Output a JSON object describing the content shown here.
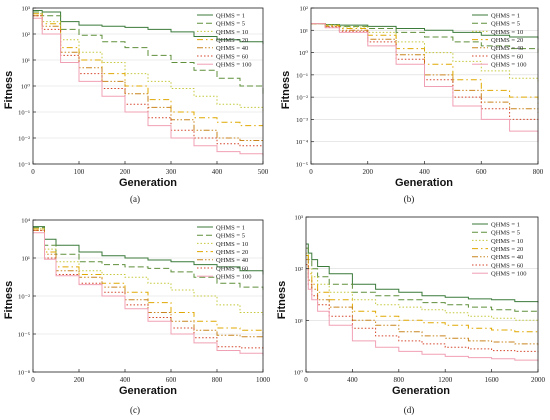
{
  "legend_labels": [
    "QHMS = 1",
    "QHMS = 5",
    "QHMS = 10",
    "QHMS = 20",
    "QHMS = 40",
    "QHMS = 60",
    "QHMS = 100"
  ],
  "series_styles": [
    {
      "color": "#3a7a3a",
      "dash": ""
    },
    {
      "color": "#5f8f3a",
      "dash": "6,3"
    },
    {
      "color": "#c4c83a",
      "dash": "1.5,2"
    },
    {
      "color": "#e0a800",
      "dash": "6,3,1.5,3"
    },
    {
      "color": "#c9851f",
      "dash": "6,2,1.5,2,1.5,2"
    },
    {
      "color": "#d4452a",
      "dash": "1.5,2"
    },
    {
      "color": "#f0a0b4",
      "dash": ""
    }
  ],
  "chart_data": [
    {
      "panel_label": "(a)",
      "type": "line",
      "xlabel": "Generation",
      "ylabel": "Fitness",
      "xlim": [
        0,
        500
      ],
      "ylog": true,
      "ylim_exp": [
        -3,
        3
      ],
      "xticks": [
        "0",
        "100",
        "200",
        "300",
        "400",
        "500"
      ],
      "yticks": [
        "10⁻³",
        "10⁻²",
        "10⁻¹",
        "10⁰",
        "10¹",
        "10²",
        "10³"
      ],
      "series": [
        {
          "name": "QHMS = 1",
          "x": [
            0,
            20,
            60,
            100,
            150,
            200,
            250,
            300,
            350,
            400,
            450,
            500
          ],
          "y": [
            800,
            700,
            300,
            220,
            200,
            180,
            150,
            120,
            80,
            60,
            50,
            40
          ]
        },
        {
          "name": "QHMS = 5",
          "x": [
            0,
            20,
            60,
            100,
            150,
            200,
            250,
            300,
            350,
            400,
            450,
            500
          ],
          "y": [
            700,
            500,
            150,
            90,
            50,
            30,
            15,
            8,
            4,
            2,
            1,
            0.5
          ]
        },
        {
          "name": "QHMS = 10",
          "x": [
            0,
            20,
            60,
            100,
            150,
            200,
            250,
            300,
            350,
            400,
            450,
            500
          ],
          "y": [
            600,
            300,
            60,
            20,
            8,
            3,
            1.5,
            0.8,
            0.4,
            0.2,
            0.15,
            0.1
          ]
        },
        {
          "name": "QHMS = 20",
          "x": [
            0,
            20,
            60,
            100,
            150,
            200,
            250,
            300,
            350,
            400,
            450,
            500
          ],
          "y": [
            600,
            250,
            30,
            10,
            3,
            1,
            0.3,
            0.1,
            0.06,
            0.04,
            0.03,
            0.03
          ]
        },
        {
          "name": "QHMS = 40",
          "x": [
            0,
            20,
            60,
            100,
            150,
            200,
            250,
            300,
            350,
            400,
            450,
            500
          ],
          "y": [
            500,
            200,
            20,
            5,
            1.5,
            0.5,
            0.15,
            0.05,
            0.02,
            0.01,
            0.008,
            0.007
          ]
        },
        {
          "name": "QHMS = 60",
          "x": [
            0,
            20,
            60,
            100,
            150,
            200,
            250,
            300,
            350,
            400,
            450,
            500
          ],
          "y": [
            500,
            150,
            15,
            3,
            0.8,
            0.2,
            0.06,
            0.02,
            0.01,
            0.006,
            0.005,
            0.005
          ]
        },
        {
          "name": "QHMS = 100",
          "x": [
            0,
            20,
            60,
            100,
            150,
            200,
            250,
            300,
            350,
            400,
            450,
            500
          ],
          "y": [
            400,
            100,
            8,
            1.5,
            0.4,
            0.1,
            0.03,
            0.01,
            0.005,
            0.003,
            0.0025,
            0.002
          ]
        }
      ]
    },
    {
      "panel_label": "(b)",
      "type": "line",
      "xlabel": "Generation",
      "ylabel": "Fitness",
      "xlim": [
        0,
        800
      ],
      "ylog": true,
      "ylim_exp": [
        -5,
        2
      ],
      "xticks": [
        "0",
        "200",
        "400",
        "600",
        "800"
      ],
      "yticks": [
        "10⁻⁵",
        "10⁻⁴",
        "10⁻³",
        "10⁻²",
        "10⁻¹",
        "10⁰",
        "10¹",
        "10²"
      ],
      "series": [
        {
          "name": "QHMS = 1",
          "x": [
            0,
            50,
            100,
            200,
            300,
            400,
            500,
            600,
            700,
            800
          ],
          "y": [
            20,
            18,
            17,
            15,
            12,
            10,
            8,
            6,
            5,
            4
          ]
        },
        {
          "name": "QHMS = 5",
          "x": [
            0,
            50,
            100,
            200,
            300,
            400,
            500,
            600,
            700,
            800
          ],
          "y": [
            20,
            18,
            15,
            12,
            8,
            5,
            3,
            2,
            1.5,
            1
          ]
        },
        {
          "name": "QHMS = 10",
          "x": [
            0,
            50,
            100,
            200,
            300,
            400,
            500,
            600,
            700,
            800
          ],
          "y": [
            20,
            17,
            14,
            8,
            3,
            1,
            0.4,
            0.15,
            0.07,
            0.05
          ]
        },
        {
          "name": "QHMS = 20",
          "x": [
            0,
            50,
            100,
            200,
            300,
            400,
            500,
            600,
            700,
            800
          ],
          "y": [
            20,
            16,
            12,
            6,
            1.5,
            0.3,
            0.06,
            0.02,
            0.01,
            0.005
          ]
        },
        {
          "name": "QHMS = 40",
          "x": [
            0,
            50,
            100,
            200,
            300,
            400,
            500,
            600,
            700,
            800
          ],
          "y": [
            20,
            15,
            10,
            4,
            0.8,
            0.1,
            0.02,
            0.006,
            0.003,
            0.002
          ]
        },
        {
          "name": "QHMS = 60",
          "x": [
            0,
            50,
            100,
            200,
            300,
            400,
            500,
            600,
            700,
            800
          ],
          "y": [
            20,
            14,
            9,
            3,
            0.5,
            0.06,
            0.01,
            0.003,
            0.001,
            0.0008
          ]
        },
        {
          "name": "QHMS = 100",
          "x": [
            0,
            50,
            100,
            200,
            300,
            400,
            500,
            600,
            700,
            800
          ],
          "y": [
            20,
            13,
            8,
            2,
            0.3,
            0.03,
            0.004,
            0.001,
            0.0003,
            0.0001
          ]
        }
      ]
    },
    {
      "panel_label": "(c)",
      "type": "line",
      "xlabel": "Generation",
      "ylabel": "Fitness",
      "xlim": [
        0,
        1000
      ],
      "ylog": true,
      "ylim_exp": [
        -8,
        4
      ],
      "xticks": [
        "0",
        "200",
        "400",
        "600",
        "800",
        "1000"
      ],
      "yticks": [
        "10⁻⁸",
        "10⁻⁵",
        "10⁻²",
        "10¹",
        "10⁴"
      ],
      "series": [
        {
          "name": "QHMS = 1",
          "x": [
            0,
            50,
            100,
            200,
            300,
            400,
            500,
            600,
            700,
            800,
            900,
            1000
          ],
          "y": [
            3000,
            300,
            100,
            30,
            15,
            10,
            7,
            5,
            3,
            2,
            1,
            0.5
          ]
        },
        {
          "name": "QHMS = 5",
          "x": [
            0,
            50,
            100,
            200,
            300,
            400,
            500,
            600,
            700,
            800,
            900,
            1000
          ],
          "y": [
            2500,
            100,
            20,
            5,
            3,
            2,
            1.5,
            0.8,
            0.3,
            0.1,
            0.05,
            0.03
          ]
        },
        {
          "name": "QHMS = 10",
          "x": [
            0,
            50,
            100,
            200,
            300,
            400,
            500,
            600,
            700,
            800,
            900,
            1000
          ],
          "y": [
            2000,
            50,
            5,
            1,
            0.5,
            0.3,
            0.1,
            0.03,
            0.01,
            0.002,
            0.0005,
            0.0002
          ]
        },
        {
          "name": "QHMS = 20",
          "x": [
            0,
            50,
            100,
            200,
            300,
            400,
            500,
            600,
            700,
            800,
            900,
            1000
          ],
          "y": [
            2000,
            30,
            2,
            0.5,
            0.1,
            0.02,
            0.003,
            0.0005,
            0.0001,
            3e-05,
            2e-05,
            1e-05
          ]
        },
        {
          "name": "QHMS = 40",
          "x": [
            0,
            50,
            100,
            200,
            300,
            400,
            500,
            600,
            700,
            800,
            900,
            1000
          ],
          "y": [
            1500,
            20,
            1,
            0.3,
            0.05,
            0.005,
            0.0005,
            0.0001,
            2e-05,
            8e-06,
            6e-06,
            5e-06
          ]
        },
        {
          "name": "QHMS = 60",
          "x": [
            0,
            50,
            100,
            200,
            300,
            400,
            500,
            600,
            700,
            800,
            900,
            1000
          ],
          "y": [
            1500,
            10,
            0.5,
            0.1,
            0.02,
            0.002,
            0.0002,
            3e-05,
            5e-06,
            1e-06,
            8e-07,
            6e-07
          ]
        },
        {
          "name": "QHMS = 100",
          "x": [
            0,
            50,
            100,
            200,
            300,
            400,
            500,
            600,
            700,
            800,
            900,
            1000
          ],
          "y": [
            1000,
            8,
            0.4,
            0.08,
            0.01,
            0.001,
            0.0001,
            1e-05,
            2e-06,
            5e-07,
            3e-07,
            2e-07
          ]
        }
      ]
    },
    {
      "panel_label": "(d)",
      "type": "line",
      "xlabel": "Generation",
      "ylabel": "Fitness",
      "xlim": [
        0,
        2000
      ],
      "ylog": true,
      "ylim_exp": [
        0,
        3
      ],
      "xticks": [
        "0",
        "400",
        "800",
        "1200",
        "1600",
        "2000"
      ],
      "yticks": [
        "10⁰",
        "10¹",
        "10²",
        "10³"
      ],
      "series": [
        {
          "name": "QHMS = 1",
          "x": [
            0,
            20,
            50,
            100,
            200,
            400,
            600,
            800,
            1000,
            1200,
            1400,
            1600,
            1800,
            2000
          ],
          "y": [
            300,
            200,
            150,
            110,
            80,
            50,
            40,
            35,
            30,
            28,
            26,
            25,
            23,
            22
          ]
        },
        {
          "name": "QHMS = 5",
          "x": [
            0,
            20,
            50,
            100,
            200,
            400,
            600,
            800,
            1000,
            1200,
            1400,
            1600,
            1800,
            2000
          ],
          "y": [
            250,
            150,
            100,
            70,
            50,
            35,
            30,
            25,
            22,
            20,
            18,
            16,
            15,
            14
          ]
        },
        {
          "name": "QHMS = 10",
          "x": [
            0,
            20,
            50,
            100,
            200,
            400,
            600,
            800,
            1000,
            1200,
            1400,
            1600,
            1800,
            2000
          ],
          "y": [
            200,
            100,
            70,
            50,
            35,
            25,
            20,
            18,
            16,
            14,
            12,
            11,
            10,
            10
          ]
        },
        {
          "name": "QHMS = 20",
          "x": [
            0,
            20,
            50,
            100,
            200,
            400,
            600,
            800,
            1000,
            1200,
            1400,
            1600,
            1800,
            2000
          ],
          "y": [
            180,
            80,
            50,
            35,
            25,
            15,
            12,
            10,
            9,
            8,
            7,
            6.5,
            6,
            5.5
          ]
        },
        {
          "name": "QHMS = 40",
          "x": [
            0,
            20,
            50,
            100,
            200,
            400,
            600,
            800,
            1000,
            1200,
            1400,
            1600,
            1800,
            2000
          ],
          "y": [
            150,
            60,
            40,
            25,
            18,
            10,
            8,
            6,
            5,
            4.5,
            4,
            3.8,
            3.5,
            3.3
          ]
        },
        {
          "name": "QHMS = 60",
          "x": [
            0,
            20,
            50,
            100,
            200,
            400,
            600,
            800,
            1000,
            1200,
            1400,
            1600,
            1800,
            2000
          ],
          "y": [
            120,
            50,
            30,
            20,
            12,
            7,
            5,
            4,
            3.5,
            3,
            2.8,
            2.6,
            2.5,
            2.4
          ]
        },
        {
          "name": "QHMS = 100",
          "x": [
            0,
            20,
            50,
            100,
            200,
            400,
            600,
            800,
            1000,
            1200,
            1400,
            1600,
            1800,
            2000
          ],
          "y": [
            100,
            40,
            25,
            15,
            8,
            4,
            3,
            2.5,
            2.2,
            2,
            1.9,
            1.8,
            1.7,
            1.6
          ]
        }
      ]
    }
  ]
}
